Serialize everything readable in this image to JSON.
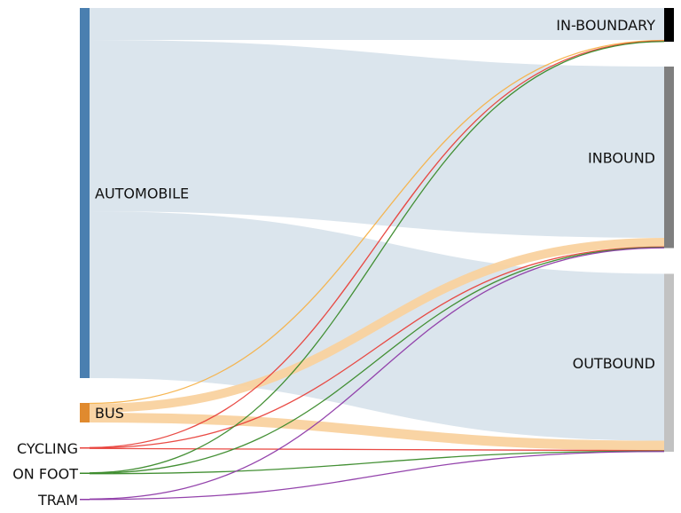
{
  "chart_data": {
    "type": "sankey",
    "nodes": [
      {
        "id": "AUTOMOBILE",
        "label": "AUTOMOBILE",
        "column": 0,
        "color": "#4a7fb0"
      },
      {
        "id": "BUS",
        "label": "BUS",
        "column": 0,
        "color": "#e08a2e"
      },
      {
        "id": "CYCLING",
        "label": "CYCLING",
        "column": 0,
        "color": "#e8413b"
      },
      {
        "id": "ON FOOT",
        "label": "ON FOOT",
        "column": 0,
        "color": "#3a8a2a"
      },
      {
        "id": "TRAM",
        "label": "TRAM",
        "column": 0,
        "color": "#8e3aa8"
      },
      {
        "id": "IN-BOUNDARY",
        "label": "IN-BOUNDARY",
        "column": 1,
        "color": "#000000"
      },
      {
        "id": "INBOUND",
        "label": "INBOUND",
        "column": 1,
        "color": "#7f7f7f"
      },
      {
        "id": "OUTBOUND",
        "label": "OUTBOUND",
        "column": 1,
        "color": "#c2c2c2"
      }
    ],
    "links": [
      {
        "source": "AUTOMOBILE",
        "target": "IN-BOUNDARY",
        "value": 36,
        "color": "#dbe5ed"
      },
      {
        "source": "AUTOMOBILE",
        "target": "INBOUND",
        "value": 193,
        "color": "#dbe5ed"
      },
      {
        "source": "AUTOMOBILE",
        "target": "OUTBOUND",
        "value": 188,
        "color": "#dbe5ed"
      },
      {
        "source": "BUS",
        "target": "IN-BOUNDARY",
        "value": 1,
        "color": "#f5b24a"
      },
      {
        "source": "BUS",
        "target": "INBOUND",
        "value": 10,
        "color": "#f9d29f"
      },
      {
        "source": "BUS",
        "target": "OUTBOUND",
        "value": 11,
        "color": "#f9d29f"
      },
      {
        "source": "CYCLING",
        "target": "IN-BOUNDARY",
        "value": 0.5,
        "color": "#e8413b"
      },
      {
        "source": "CYCLING",
        "target": "INBOUND",
        "value": 0.5,
        "color": "#e8413b"
      },
      {
        "source": "CYCLING",
        "target": "OUTBOUND",
        "value": 0.5,
        "color": "#e8413b"
      },
      {
        "source": "ON FOOT",
        "target": "IN-BOUNDARY",
        "value": 0.5,
        "color": "#3a8a2a"
      },
      {
        "source": "ON FOOT",
        "target": "INBOUND",
        "value": 0.5,
        "color": "#3a8a2a"
      },
      {
        "source": "ON FOOT",
        "target": "OUTBOUND",
        "value": 0.5,
        "color": "#3a8a2a"
      },
      {
        "source": "TRAM",
        "target": "INBOUND",
        "value": 0.5,
        "color": "#8e3aa8"
      },
      {
        "source": "TRAM",
        "target": "OUTBOUND",
        "value": 0.5,
        "color": "#8e3aa8"
      }
    ]
  }
}
